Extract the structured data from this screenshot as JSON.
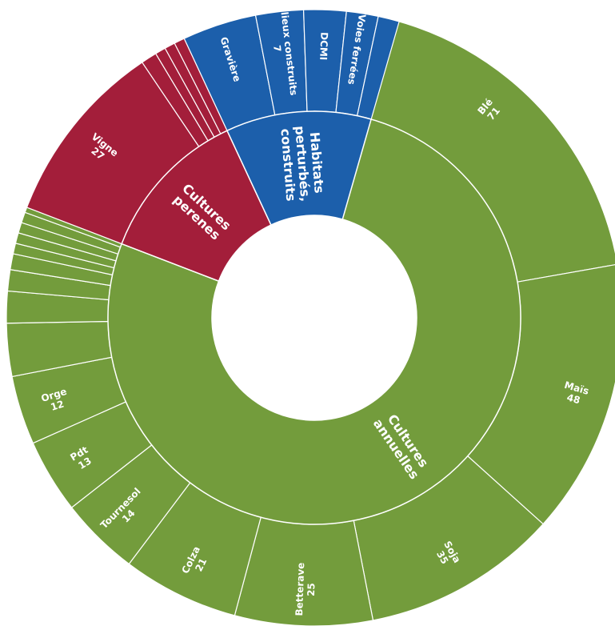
{
  "chart_data": {
    "type": "sunburst",
    "colors": {
      "green": "#739c3c",
      "red": "#a31e3a",
      "blue": "#1c5fab"
    },
    "inner": [
      {
        "label": "Cultures annuelles",
        "color": "green"
      },
      {
        "label": "Cultures perenes",
        "color": "red"
      },
      {
        "label": "Habitats perturbés, construits",
        "color": "blue"
      }
    ],
    "outer": [
      {
        "name": "Blé",
        "value": "71",
        "parent": "Cultures annuelles",
        "degrees": 80
      },
      {
        "name": "Maïs",
        "value": "48",
        "parent": "Cultures annuelles",
        "degrees": 52
      },
      {
        "name": "Soja",
        "value": "35",
        "parent": "Cultures annuelles",
        "degrees": 37
      },
      {
        "name": "Betterave",
        "value": "25",
        "parent": "Cultures annuelles",
        "degrees": 26
      },
      {
        "name": "Colza",
        "value": "21",
        "parent": "Cultures annuelles",
        "degrees": 22
      },
      {
        "name": "Tournesol",
        "value": "14",
        "parent": "Cultures annuelles",
        "degrees": 15
      },
      {
        "name": "Pdt",
        "value": "13",
        "parent": "Cultures annuelles",
        "degrees": 14
      },
      {
        "name": "Orge",
        "value": "12",
        "parent": "Cultures annuelles",
        "degrees": 13
      },
      {
        "name": "",
        "value": "",
        "parent": "Cultures annuelles",
        "degrees": 10
      },
      {
        "name": "",
        "value": "",
        "parent": "Cultures annuelles",
        "degrees": 6
      },
      {
        "name": "",
        "value": "",
        "parent": "Cultures annuelles",
        "degrees": 4
      },
      {
        "name": "",
        "value": "",
        "parent": "Cultures annuelles",
        "degrees": 3
      },
      {
        "name": "",
        "value": "",
        "parent": "Cultures annuelles",
        "degrees": 2
      },
      {
        "name": "",
        "value": "",
        "parent": "Cultures annuelles",
        "degrees": 2
      },
      {
        "name": "",
        "value": "",
        "parent": "Cultures annuelles",
        "degrees": 2
      },
      {
        "name": "",
        "value": "",
        "parent": "Cultures annuelles",
        "degrees": 2
      },
      {
        "name": "",
        "value": "",
        "parent": "Cultures annuelles",
        "degrees": 1
      },
      {
        "name": "Vigne",
        "value": "27",
        "parent": "Cultures perenes",
        "degrees": 35
      },
      {
        "name": "",
        "value": "",
        "parent": "Cultures perenes",
        "degrees": 3
      },
      {
        "name": "",
        "value": "",
        "parent": "Cultures perenes",
        "degrees": 2
      },
      {
        "name": "",
        "value": "",
        "parent": "Cultures perenes",
        "degrees": 2
      },
      {
        "name": "",
        "value": "",
        "parent": "Cultures perenes",
        "degrees": 2
      },
      {
        "name": "Gravière",
        "value": "",
        "parent": "Habitats perturbés, construits",
        "degrees": 14
      },
      {
        "name": "Milieux construits",
        "value": "7",
        "parent": "Habitats perturbés, construits",
        "degrees": 9
      },
      {
        "name": "DCMI",
        "value": "",
        "parent": "Habitats perturbés, construits",
        "degrees": 8
      },
      {
        "name": "Voies ferrées",
        "value": "",
        "parent": "Habitats perturbés, construits",
        "degrees": 6
      },
      {
        "name": "",
        "value": "",
        "parent": "Habitats perturbés, construits",
        "degrees": 4
      }
    ]
  }
}
